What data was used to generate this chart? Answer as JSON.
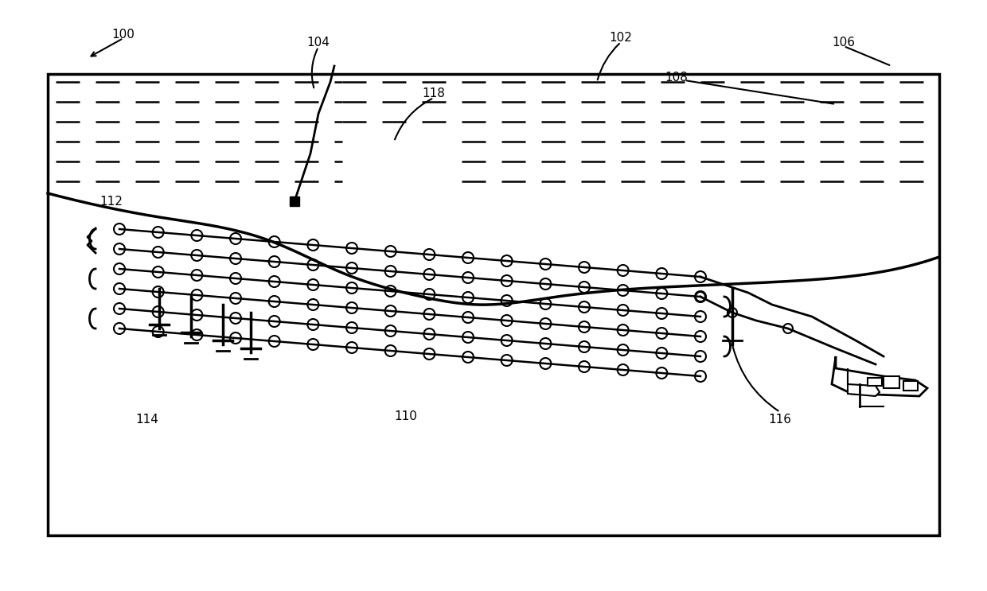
{
  "bg_color": "#ffffff",
  "box_color": "#000000",
  "line_color": "#000000",
  "label_100": "100",
  "label_102": "102",
  "label_104": "104",
  "label_106": "106",
  "label_108": "108",
  "label_110": "110",
  "label_112": "112",
  "label_114": "114",
  "label_116": "116",
  "label_118": "118",
  "title_fontsize": 11,
  "annotation_fontsize": 11
}
